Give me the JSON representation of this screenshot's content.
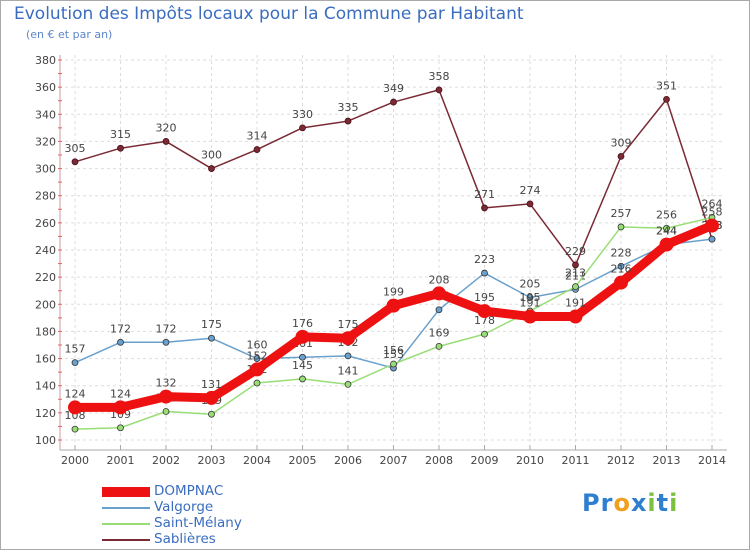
{
  "chart_data": {
    "type": "line",
    "title": "Evolution des Impôts locaux pour la Commune par Habitant",
    "subtitle": "(en € et par an)",
    "xlabel": "",
    "ylabel": "",
    "ylim": [
      100,
      380
    ],
    "yticks": [
      100,
      120,
      140,
      160,
      180,
      200,
      220,
      240,
      260,
      280,
      300,
      320,
      340,
      360,
      380
    ],
    "x": [
      2000,
      2001,
      2002,
      2003,
      2004,
      2005,
      2006,
      2007,
      2008,
      2009,
      2010,
      2011,
      2012,
      2013,
      2014
    ],
    "series": [
      {
        "name": "DOMPNAC",
        "color": "#ee1111",
        "values": [
          124,
          124,
          132,
          131,
          152,
          176,
          175,
          199,
          208,
          195,
          191,
          191,
          216,
          244,
          258
        ]
      },
      {
        "name": "Valgorge",
        "color": "#6aa0cc",
        "values": [
          157,
          172,
          172,
          175,
          160,
          161,
          162,
          153,
          196,
          223,
          205,
          211,
          228,
          244,
          248
        ]
      },
      {
        "name": "Saint-Mélany",
        "color": "#99dd77",
        "values": [
          108,
          109,
          121,
          119,
          142,
          145,
          141,
          156,
          169,
          178,
          195,
          213,
          257,
          256,
          264
        ]
      },
      {
        "name": "Sablières",
        "color": "#7a2a35",
        "values": [
          305,
          315,
          320,
          300,
          314,
          330,
          335,
          349,
          358,
          271,
          274,
          229,
          309,
          351,
          248
        ]
      }
    ],
    "legend": "bottom-left",
    "grid": true
  },
  "brand": {
    "letters": [
      "P",
      "r",
      "o",
      "x",
      "i",
      "t",
      "i"
    ],
    "colors": [
      "#2f7fd0",
      "#2f7fd0",
      "#f0a020",
      "#2f7fd0",
      "#7ac142",
      "#2f7fd0",
      "#7ac142"
    ]
  }
}
